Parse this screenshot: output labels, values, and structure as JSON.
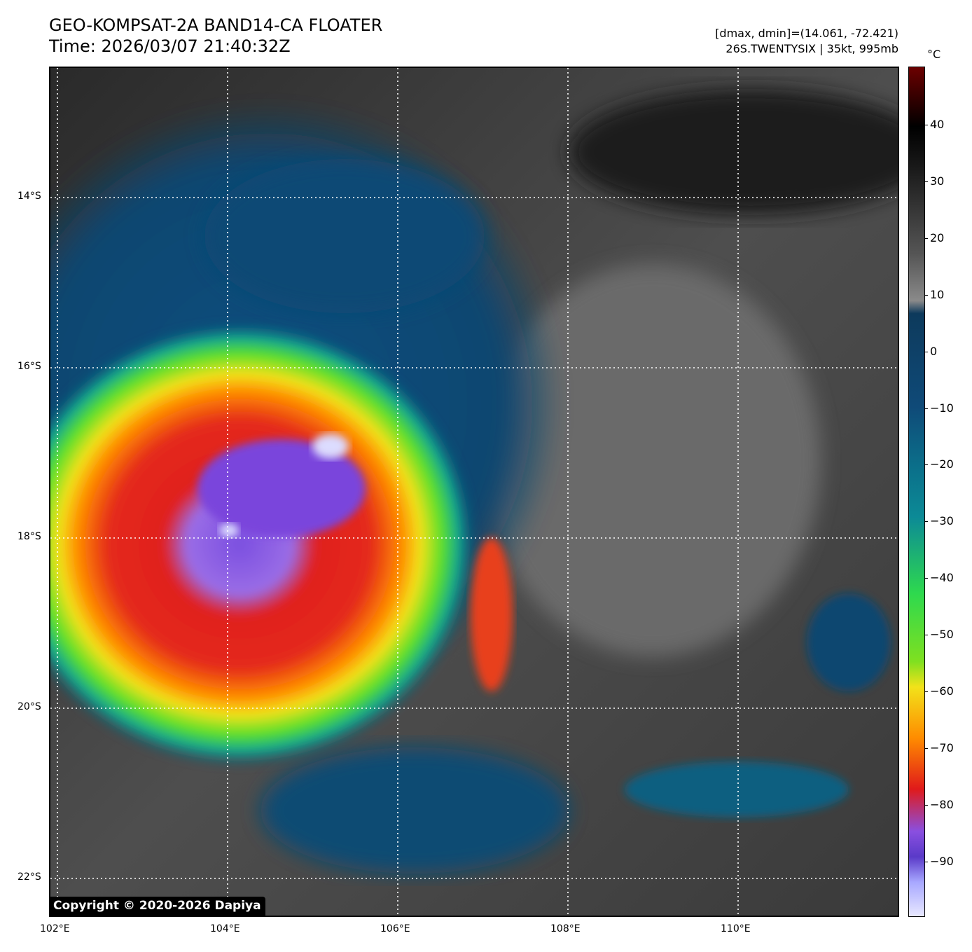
{
  "header": {
    "title_line1": "GEO-KOMPSAT-2A BAND14-CA FLOATER",
    "title_line2": "Time: 2026/03/07 21:40:32Z",
    "info_line1": "[dmax, dmin]=(14.061, -72.421)",
    "info_line2": "26S.TWENTYSIX | 35kt, 995mb"
  },
  "map": {
    "lat_labels": [
      "14°S",
      "16°S",
      "18°S",
      "20°S",
      "22°S"
    ],
    "lon_labels": [
      "102°E",
      "104°E",
      "106°E",
      "108°E",
      "110°E"
    ],
    "copyright": "Copyright © 2020-2026 Dapiya",
    "storm_name": "26S.TWENTYSIX"
  },
  "colorbar": {
    "unit": "°C",
    "labels": [
      "40",
      "30",
      "20",
      "10",
      "0",
      "−10",
      "−20",
      "−30",
      "−40",
      "−50",
      "−60",
      "−70",
      "−80",
      "−90"
    ],
    "colors": {
      "warm_top": "#6b0000",
      "warm_dark": "#000000",
      "gray_mid": "#8a8a8a",
      "blue_dark": "#0d3a5c",
      "teal": "#0c8a96",
      "green": "#2ed94e",
      "yellow": "#f2e21a",
      "orange": "#ff8c00",
      "red": "#e01a1a",
      "purple": "#8a4fe0",
      "lavender": "#e8e8ff"
    }
  }
}
